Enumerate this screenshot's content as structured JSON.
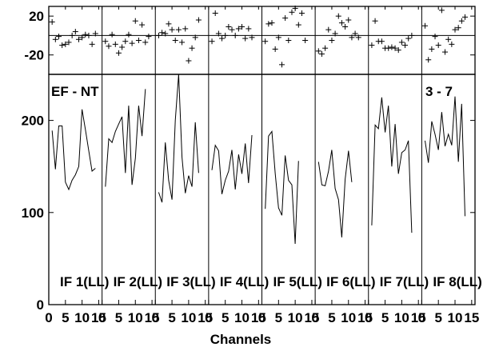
{
  "chart_data": {
    "type": "line",
    "baseline_label": "EF - NT",
    "time_label": "3 - 7",
    "xlabel": "Channels",
    "x_tick_labels": [
      "0",
      "5",
      "10",
      "15"
    ],
    "x_tick_values": [
      0,
      5,
      10,
      15
    ],
    "x_range": [
      0,
      16
    ],
    "amp_ylim": [
      0,
      250
    ],
    "amp_ticks": [
      0,
      100,
      200
    ],
    "amp_tick_labels": [
      "0",
      "100",
      "200"
    ],
    "phase_ylim": [
      -40,
      30
    ],
    "phase_ticks": [
      -20,
      20
    ],
    "phase_tick_labels": [
      "-20",
      "20"
    ],
    "panels": [
      {
        "label": "IF 1(LL)",
        "channels": [
          1,
          2,
          3,
          4,
          5,
          6,
          7,
          8,
          9,
          10,
          11,
          12,
          13,
          14,
          15
        ],
        "amplitude": [
          189,
          147,
          194,
          194,
          133,
          125,
          135,
          141,
          150,
          212,
          190,
          167,
          145,
          148,
          null
        ],
        "phase": [
          14,
          -4,
          -1,
          -10,
          -9,
          -7,
          0,
          4,
          -4,
          -2,
          1,
          0,
          -9,
          2,
          null
        ]
      },
      {
        "label": "IF 2(LL)",
        "channels": [
          1,
          2,
          3,
          4,
          5,
          6,
          7,
          8,
          9,
          10,
          11,
          12,
          13,
          14,
          15
        ],
        "amplitude": [
          128,
          180,
          176,
          188,
          196,
          204,
          143,
          216,
          130,
          159,
          216,
          183,
          234,
          null,
          null
        ],
        "phase": [
          -6,
          -11,
          1,
          -9,
          -18,
          -12,
          -6,
          1,
          -8,
          15,
          -5,
          11,
          -7,
          -1,
          null
        ]
      },
      {
        "label": "IF 3(LL)",
        "channels": [
          1,
          2,
          3,
          4,
          5,
          6,
          7,
          8,
          9,
          10,
          11,
          12,
          13,
          14,
          15
        ],
        "amplitude": [
          122,
          111,
          176,
          135,
          114,
          200,
          250,
          160,
          121,
          140,
          128,
          198,
          143,
          null,
          null
        ],
        "phase": [
          0,
          3,
          2,
          12,
          6,
          -5,
          6,
          -7,
          7,
          -26,
          -13,
          -2,
          16,
          null,
          null
        ]
      },
      {
        "label": "IF 4(LL)",
        "channels": [
          1,
          2,
          3,
          4,
          5,
          6,
          7,
          8,
          9,
          10,
          11,
          12,
          13,
          14,
          15
        ],
        "amplitude": [
          146,
          173,
          167,
          120,
          135,
          145,
          168,
          125,
          163,
          142,
          175,
          132,
          184,
          null,
          null
        ],
        "phase": [
          -6,
          23,
          2,
          -3,
          0,
          9,
          6,
          0,
          7,
          9,
          -3,
          7,
          -2,
          null,
          null
        ]
      },
      {
        "label": "IF 5(LL)",
        "channels": [
          1,
          2,
          3,
          4,
          5,
          6,
          7,
          8,
          9,
          10,
          11,
          12,
          13,
          14,
          15
        ],
        "amplitude": [
          104,
          183,
          188,
          142,
          105,
          97,
          162,
          135,
          130,
          66,
          156,
          null,
          null,
          null,
          null
        ],
        "phase": [
          -6,
          12,
          13,
          -14,
          -2,
          -30,
          18,
          -5,
          24,
          28,
          11,
          23,
          -5,
          null,
          null
        ]
      },
      {
        "label": "IF 6(LL)",
        "channels": [
          1,
          2,
          3,
          4,
          5,
          6,
          7,
          8,
          9,
          10,
          11,
          12,
          13,
          14,
          15
        ],
        "amplitude": [
          155,
          130,
          129,
          145,
          168,
          126,
          114,
          73,
          136,
          167,
          133,
          null,
          null,
          null,
          null
        ],
        "phase": [
          -16,
          -19,
          -13,
          6,
          -5,
          2,
          20,
          13,
          9,
          16,
          -2,
          2,
          -2,
          null,
          null
        ]
      },
      {
        "label": "IF 7(LL)",
        "channels": [
          1,
          2,
          3,
          4,
          5,
          6,
          7,
          8,
          9,
          10,
          11,
          12,
          13,
          14,
          15
        ],
        "amplitude": [
          86,
          195,
          191,
          225,
          187,
          216,
          150,
          196,
          142,
          165,
          168,
          178,
          78,
          null,
          null
        ],
        "phase": [
          -10,
          15,
          -6,
          -6,
          -13,
          -13,
          -12,
          -13,
          -15,
          -7,
          -10,
          -3,
          0,
          null,
          null
        ]
      },
      {
        "label": "IF 8(LL)",
        "channels": [
          1,
          2,
          3,
          4,
          5,
          6,
          7,
          8,
          9,
          10,
          11,
          12,
          13,
          14,
          15
        ],
        "amplitude": [
          178,
          154,
          199,
          185,
          168,
          209,
          172,
          185,
          173,
          226,
          155,
          218,
          96,
          null,
          null
        ],
        "phase": [
          10,
          -25,
          -14,
          -1,
          -10,
          26,
          -17,
          -4,
          -9,
          6,
          8,
          15,
          19,
          null,
          null
        ]
      }
    ]
  }
}
